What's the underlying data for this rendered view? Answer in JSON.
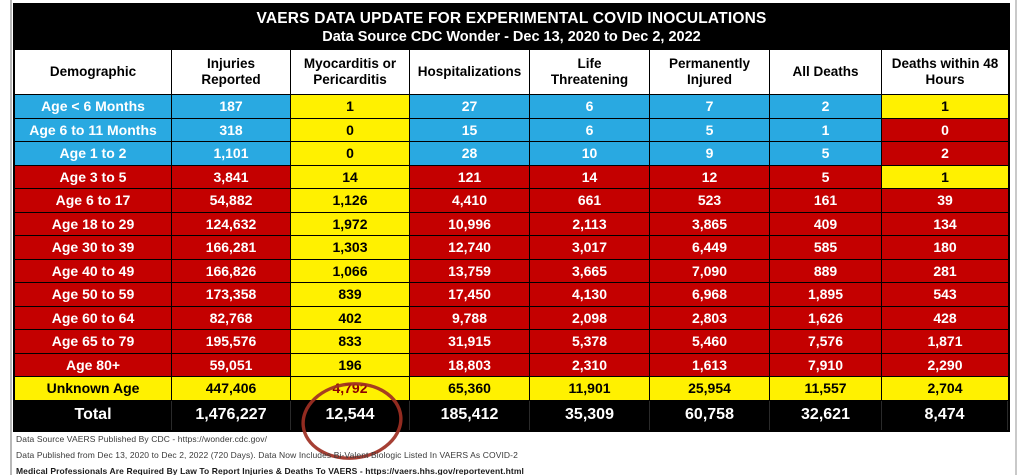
{
  "palette": {
    "bg": {
      "c": "#29A9E1",
      "r": "#C40000",
      "y": "#FFF100",
      "k": "#000000"
    },
    "text_on_dark": "#FFFFFF",
    "text_on_light": "#000000",
    "annotation_stroke": "#9E2F23",
    "header_text": "#000000"
  },
  "chart_data": {
    "type": "table",
    "title": "VAERS DATA UPDATE FOR EXPERIMENTAL COVID INOCULATIONS",
    "subtitle": "Data Source CDC Wonder - Dec 13, 2020 to Dec 2, 2022",
    "columns": [
      "Demographic",
      "Injuries Reported",
      "Myocarditis or Pericarditis",
      "Hospitalizations",
      "Life Threatening",
      "Permanently Injured",
      "All Deaths",
      "Deaths within 48 Hours"
    ],
    "rows": [
      {
        "demographic": "Age < 6 Months",
        "values": [
          187,
          1,
          27,
          6,
          7,
          2,
          1
        ],
        "bg": [
          "c",
          "c",
          "y",
          "c",
          "c",
          "c",
          "c",
          "y"
        ]
      },
      {
        "demographic": "Age 6 to 11 Months",
        "values": [
          318,
          0,
          15,
          6,
          5,
          1,
          0
        ],
        "bg": [
          "c",
          "c",
          "y",
          "c",
          "c",
          "c",
          "c",
          "r"
        ]
      },
      {
        "demographic": "Age 1 to 2",
        "values": [
          1101,
          0,
          28,
          10,
          9,
          5,
          2
        ],
        "bg": [
          "c",
          "c",
          "y",
          "c",
          "c",
          "c",
          "c",
          "r"
        ]
      },
      {
        "demographic": "Age 3 to 5",
        "values": [
          3841,
          14,
          121,
          14,
          12,
          5,
          1
        ],
        "bg": [
          "r",
          "r",
          "y",
          "r",
          "r",
          "r",
          "r",
          "y"
        ]
      },
      {
        "demographic": "Age 6 to 17",
        "values": [
          54882,
          1126,
          4410,
          661,
          523,
          161,
          39
        ],
        "bg": [
          "r",
          "r",
          "y",
          "r",
          "r",
          "r",
          "r",
          "r"
        ]
      },
      {
        "demographic": "Age 18 to 29",
        "values": [
          124632,
          1972,
          10996,
          2113,
          3865,
          409,
          134
        ],
        "bg": [
          "r",
          "r",
          "y",
          "r",
          "r",
          "r",
          "r",
          "r"
        ]
      },
      {
        "demographic": "Age 30 to 39",
        "values": [
          166281,
          1303,
          12740,
          3017,
          6449,
          585,
          180
        ],
        "bg": [
          "r",
          "r",
          "y",
          "r",
          "r",
          "r",
          "r",
          "r"
        ]
      },
      {
        "demographic": "Age 40 to 49",
        "values": [
          166826,
          1066,
          13759,
          3665,
          7090,
          889,
          281
        ],
        "bg": [
          "r",
          "r",
          "y",
          "r",
          "r",
          "r",
          "r",
          "r"
        ]
      },
      {
        "demographic": "Age 50 to 59",
        "values": [
          173358,
          839,
          17450,
          4130,
          6968,
          1895,
          543
        ],
        "bg": [
          "r",
          "r",
          "y",
          "r",
          "r",
          "r",
          "r",
          "r"
        ]
      },
      {
        "demographic": "Age 60 to 64",
        "values": [
          82768,
          402,
          9788,
          2098,
          2803,
          1626,
          428
        ],
        "bg": [
          "r",
          "r",
          "y",
          "r",
          "r",
          "r",
          "r",
          "r"
        ]
      },
      {
        "demographic": "Age 65 to 79",
        "values": [
          195576,
          833,
          31915,
          5378,
          5460,
          7576,
          1871
        ],
        "bg": [
          "r",
          "r",
          "y",
          "r",
          "r",
          "r",
          "r",
          "r"
        ]
      },
      {
        "demographic": "Age 80+",
        "values": [
          59051,
          196,
          18803,
          2310,
          1613,
          7910,
          2290
        ],
        "bg": [
          "r",
          "r",
          "y",
          "r",
          "r",
          "r",
          "r",
          "r"
        ]
      },
      {
        "demographic": "Unknown Age",
        "values": [
          447406,
          4792,
          65360,
          11901,
          25954,
          11557,
          2704
        ],
        "bg": [
          "y",
          "y",
          "y",
          "y",
          "y",
          "y",
          "y",
          "y"
        ],
        "value_text_colors": {
          "1": "#8B0000"
        }
      },
      {
        "demographic": "Total",
        "values": [
          1476227,
          12544,
          185412,
          35309,
          60758,
          32621,
          8474
        ],
        "bg": [
          "k",
          "k",
          "k",
          "k",
          "k",
          "k",
          "k",
          "k"
        ],
        "is_total": true
      }
    ]
  },
  "annotation": {
    "shape": "hand-drawn-ellipse",
    "circled_value": "12,544",
    "circled_cell": "Total / Myocarditis or Pericarditis"
  },
  "footnotes": [
    "Data Source VAERS Published By CDC - https://wonder.cdc.gov/",
    "Data Published from Dec 13, 2020 to Dec 2, 2022 (720 Days). Data Now Includes Bi-Valent Biologic Listed In VAERS As COVID-2",
    "Medical Professionals Are Required By Law To Report Injuries & Deaths To VAERS - https://vaers.hhs.gov/reportevent.html"
  ]
}
